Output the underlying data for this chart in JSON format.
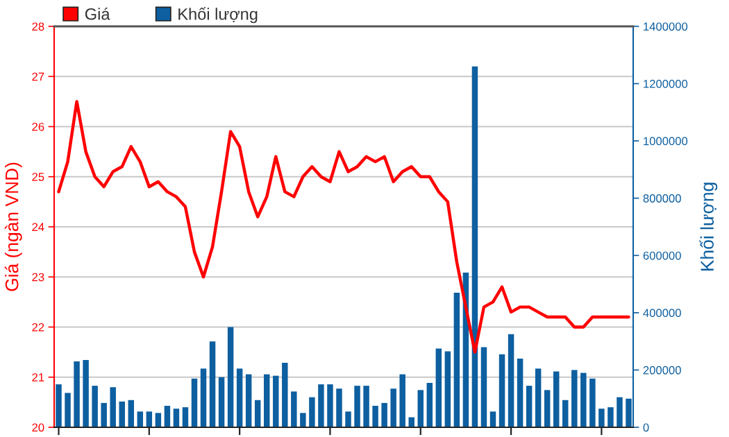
{
  "chart_data": {
    "type": "line",
    "categories": [
      null,
      null,
      null,
      null,
      null,
      null,
      null,
      null,
      null,
      null,
      null,
      null,
      null,
      null,
      null,
      null,
      null,
      null,
      null,
      null,
      null,
      null,
      null,
      null,
      null,
      null,
      null,
      null,
      null,
      null,
      null,
      null,
      null,
      null,
      null,
      null,
      null,
      null,
      null,
      null,
      null,
      null,
      null,
      null,
      null,
      null,
      null,
      null,
      null,
      null,
      null,
      null,
      null,
      null,
      null,
      null,
      null,
      null,
      null,
      null,
      null,
      null,
      null,
      null
    ],
    "series": [
      {
        "name": "Giá",
        "color": "#ff0000",
        "values": [
          24.7,
          25.3,
          26.5,
          25.5,
          25.0,
          24.8,
          25.1,
          25.2,
          25.6,
          25.3,
          24.8,
          24.9,
          24.7,
          24.6,
          24.4,
          23.5,
          23.0,
          23.6,
          24.7,
          25.9,
          25.6,
          24.7,
          24.2,
          24.6,
          25.4,
          24.7,
          24.6,
          25.0,
          25.2,
          25.0,
          24.9,
          25.5,
          25.1,
          25.2,
          25.4,
          25.3,
          25.4,
          24.9,
          25.1,
          25.2,
          25.0,
          25.0,
          24.7,
          24.5,
          23.3,
          22.4,
          21.5,
          22.4,
          22.5,
          22.8,
          22.3,
          22.4,
          22.4,
          22.3,
          22.2,
          22.2,
          22.2,
          22.0,
          22.0,
          22.2,
          22.2,
          22.2,
          22.2,
          22.2
        ]
      },
      {
        "name": "Khối lượng",
        "type": "bar",
        "axis": "y2",
        "color": "#0d5fa0",
        "values": [
          150000,
          120000,
          230000,
          235000,
          145000,
          85000,
          140000,
          90000,
          95000,
          55000,
          55000,
          50000,
          75000,
          65000,
          70000,
          170000,
          205000,
          300000,
          175000,
          350000,
          205000,
          185000,
          95000,
          185000,
          180000,
          225000,
          125000,
          50000,
          105000,
          150000,
          150000,
          135000,
          55000,
          145000,
          145000,
          75000,
          85000,
          135000,
          185000,
          35000,
          130000,
          155000,
          275000,
          265000,
          470000,
          540000,
          1260000,
          280000,
          55000,
          255000,
          325000,
          240000,
          145000,
          205000,
          130000,
          195000,
          95000,
          200000,
          190000,
          170000,
          65000,
          70000,
          105000,
          100000
        ]
      }
    ],
    "ylabel": "Giá (ngàn VND)",
    "y2label": "Khối lượng",
    "ylim": [
      20,
      28
    ],
    "yticks": [
      20,
      21,
      22,
      23,
      24,
      25,
      26,
      27,
      28
    ],
    "y2lim": [
      0,
      1400000
    ],
    "y2ticks": [
      0,
      200000,
      400000,
      600000,
      800000,
      1000000,
      1200000,
      1400000
    ],
    "grid": "y",
    "legend": "top left"
  }
}
